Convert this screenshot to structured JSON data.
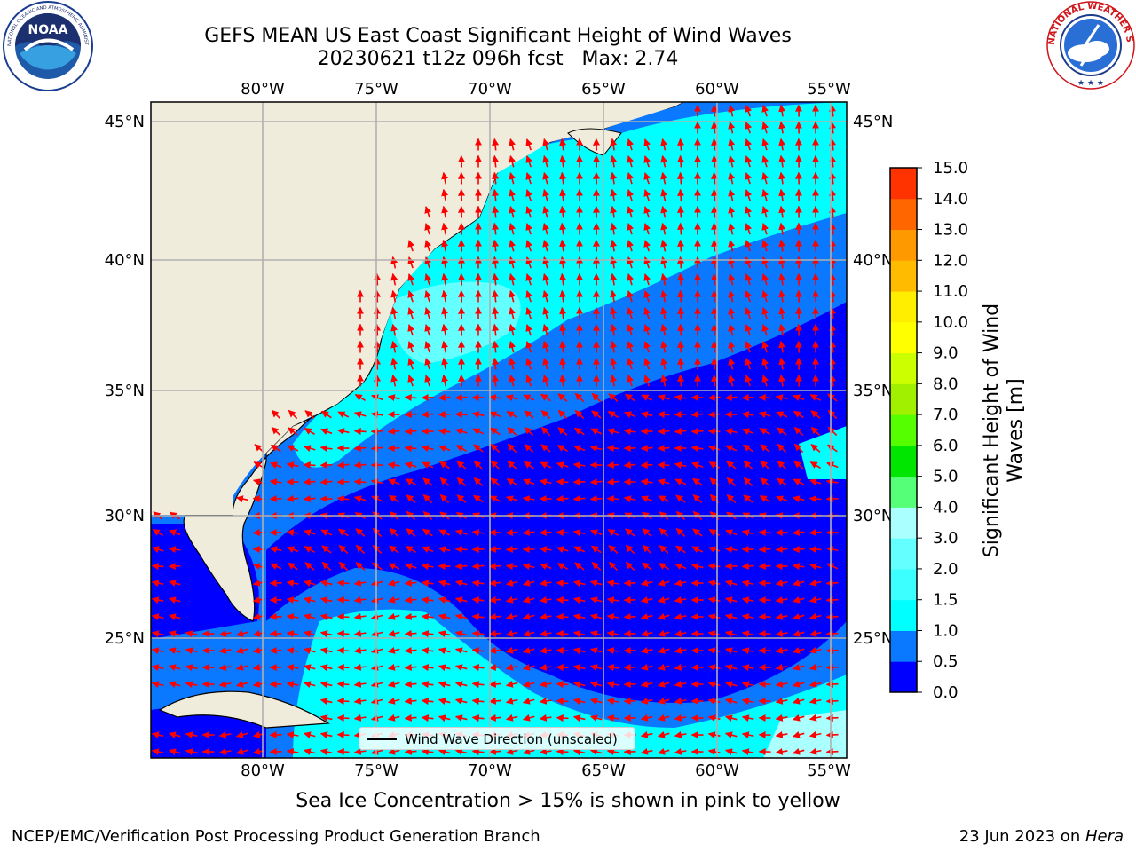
{
  "title": {
    "line1": "GEFS MEAN US East Coast Significant Height of Wind Waves",
    "line2": "20230621 t12z 096h fcst   Max: 2.74"
  },
  "logos": {
    "left": {
      "name": "NOAA",
      "ring_text": "NATIONAL OCEANIC AND ATMOSPHERIC ADMINISTRATION · U.S. DEPARTMENT OF COMMERCE",
      "center_text": "NOAA"
    },
    "right": {
      "name": "National Weather Service",
      "ring_text": "NATIONAL WEATHER SERVICE"
    }
  },
  "map": {
    "lon_labels": [
      "80°W",
      "75°W",
      "70°W",
      "65°W",
      "60°W",
      "55°W"
    ],
    "lat_labels": [
      "45°N",
      "40°N",
      "35°N",
      "30°N",
      "25°N"
    ],
    "lon_range": [
      -85,
      -54.5
    ],
    "lat_range": [
      20.5,
      46
    ],
    "arrow_color": "#ff0000",
    "land_color": "#efecdc",
    "legend_label": "Wind Wave Direction (unscaled)"
  },
  "colorbar": {
    "title_line1": "Significant Height of Wind",
    "title_line2": "Waves [m]",
    "ticks": [
      "0.0",
      "0.5",
      "1.0",
      "1.5",
      "2.0",
      "3.0",
      "4.0",
      "5.0",
      "6.0",
      "7.0",
      "8.0",
      "9.0",
      "10.0",
      "11.0",
      "12.0",
      "13.0",
      "14.0",
      "15.0"
    ],
    "colors": [
      "#0000ff",
      "#0a78ff",
      "#00ffff",
      "#3cffff",
      "#64ffff",
      "#aaffff",
      "#55ff78",
      "#00e600",
      "#55ff00",
      "#a0f000",
      "#ccff00",
      "#ffff00",
      "#ffee00",
      "#ffbb00",
      "#ff9900",
      "#ff6600",
      "#ff3300"
    ]
  },
  "ice_note": "Sea Ice Concentration > 15% is shown in pink to yellow",
  "footer": {
    "left": "NCEP/EMC/Verification Post Processing Product Generation Branch",
    "right_date": "23 Jun 2023 on ",
    "right_machine": "Hera"
  }
}
